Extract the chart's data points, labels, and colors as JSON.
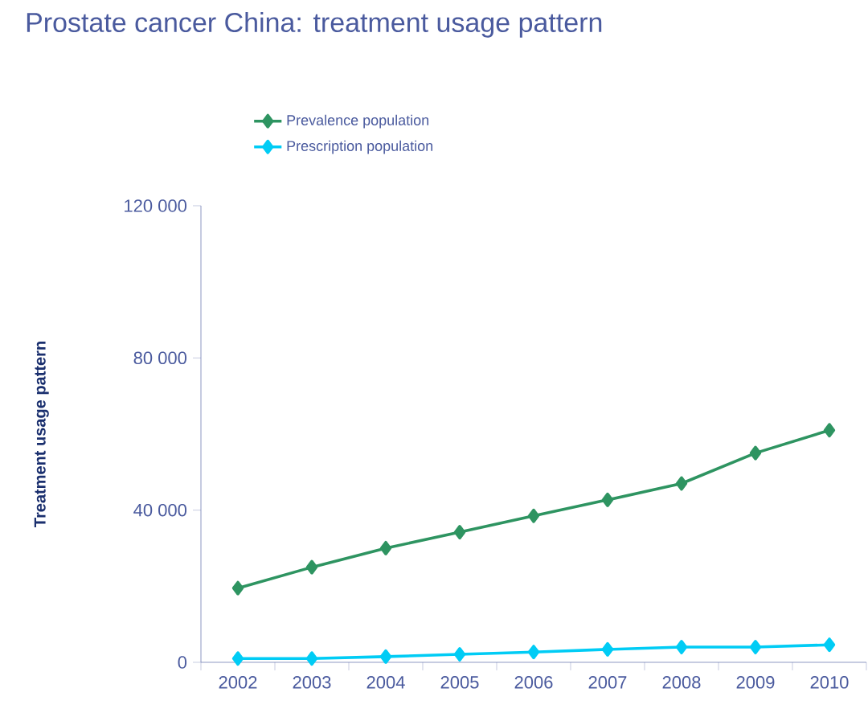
{
  "chart_data": {
    "type": "line",
    "title": "Prostate cancer China: treatment usage pattern",
    "ylabel": "Treatment usage pattern",
    "categories": [
      "2002",
      "2003",
      "2004",
      "2005",
      "2006",
      "2007",
      "2008",
      "2009",
      "2010"
    ],
    "series": [
      {
        "name": "Prevalence population",
        "color": "#2e9461",
        "values": [
          19500,
          25000,
          30000,
          34200,
          38500,
          42700,
          47000,
          55000,
          61000
        ]
      },
      {
        "name": "Prescription population",
        "color": "#00ccf5",
        "values": [
          1000,
          1000,
          1500,
          2100,
          2700,
          3400,
          4000,
          4000,
          4600
        ]
      }
    ],
    "ylim": [
      0,
      120000
    ],
    "yticks": [
      {
        "value": 0,
        "label": "0"
      },
      {
        "value": 40000,
        "label": "40 000"
      },
      {
        "value": 80000,
        "label": "80 000"
      },
      {
        "value": 120000,
        "label": "120 000"
      }
    ],
    "marker": "diamond",
    "line_style": "solid",
    "grid": false,
    "legend": "top"
  }
}
